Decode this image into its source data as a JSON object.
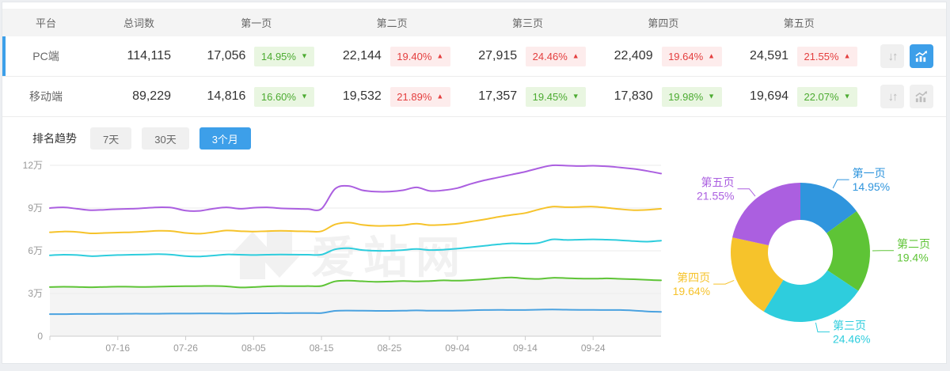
{
  "colors": {
    "accent_blue": "#3d9fe9",
    "up_red": "#e43e3e",
    "down_green": "#4cab31",
    "header_bg": "#f4f4f4"
  },
  "icons": {
    "sort_glyph": "↓↑"
  },
  "table": {
    "headers": [
      "平台",
      "总词数",
      "第一页",
      "第二页",
      "第三页",
      "第四页",
      "第五页"
    ],
    "rows": [
      {
        "platform": "PC端",
        "total": "114,115",
        "active": true,
        "pages": [
          {
            "value": "17,056",
            "pct": "14.95%",
            "dir": "down"
          },
          {
            "value": "22,144",
            "pct": "19.40%",
            "dir": "up"
          },
          {
            "value": "27,915",
            "pct": "24.46%",
            "dir": "up"
          },
          {
            "value": "22,409",
            "pct": "19.64%",
            "dir": "up"
          },
          {
            "value": "24,591",
            "pct": "21.55%",
            "dir": "up"
          }
        ]
      },
      {
        "platform": "移动端",
        "total": "89,229",
        "active": false,
        "pages": [
          {
            "value": "14,816",
            "pct": "16.60%",
            "dir": "down"
          },
          {
            "value": "19,532",
            "pct": "21.89%",
            "dir": "up"
          },
          {
            "value": "17,357",
            "pct": "19.45%",
            "dir": "down"
          },
          {
            "value": "17,830",
            "pct": "19.98%",
            "dir": "down"
          },
          {
            "value": "19,694",
            "pct": "22.07%",
            "dir": "down"
          }
        ]
      }
    ]
  },
  "trend": {
    "label": "排名趋势",
    "ranges": [
      {
        "label": "7天",
        "active": false
      },
      {
        "label": "30天",
        "active": false
      },
      {
        "label": "3个月",
        "active": true
      }
    ]
  },
  "chart_data": {
    "line": {
      "type": "line",
      "watermark": "爱站网",
      "ymax": 12,
      "yticks": [
        {
          "v": 0,
          "label": "0"
        },
        {
          "v": 3,
          "label": "3万"
        },
        {
          "v": 6,
          "label": "6万"
        },
        {
          "v": 9,
          "label": "9万"
        },
        {
          "v": 12,
          "label": "12万"
        }
      ],
      "xticks": [
        {
          "pos": 0.1111,
          "label": "07-16"
        },
        {
          "pos": 0.2222,
          "label": "07-26"
        },
        {
          "pos": 0.3333,
          "label": "08-05"
        },
        {
          "pos": 0.4444,
          "label": "08-15"
        },
        {
          "pos": 0.5556,
          "label": "08-25"
        },
        {
          "pos": 0.6667,
          "label": "09-04"
        },
        {
          "pos": 0.7778,
          "label": "09-14"
        },
        {
          "pos": 0.8889,
          "label": "09-24"
        }
      ],
      "unit": "万",
      "series": [
        {
          "name": "series-purple",
          "color": "#ab5fe0",
          "values": [
            9.0,
            9.05,
            8.95,
            8.85,
            8.88,
            8.92,
            8.95,
            9.0,
            9.05,
            9.02,
            8.82,
            8.8,
            8.95,
            9.05,
            8.95,
            9.02,
            9.05,
            8.98,
            8.95,
            8.93,
            8.95,
            10.35,
            10.55,
            10.25,
            10.15,
            10.15,
            10.25,
            10.45,
            10.2,
            10.25,
            10.4,
            10.7,
            10.95,
            11.15,
            11.35,
            11.55,
            11.8,
            12.0,
            11.98,
            11.95,
            11.97,
            11.93,
            11.85,
            11.75,
            11.6,
            11.42
          ]
        },
        {
          "name": "series-yellow",
          "color": "#f6c32b",
          "values": [
            7.3,
            7.35,
            7.32,
            7.22,
            7.25,
            7.28,
            7.3,
            7.35,
            7.4,
            7.38,
            7.25,
            7.2,
            7.3,
            7.42,
            7.38,
            7.35,
            7.38,
            7.4,
            7.38,
            7.36,
            7.37,
            7.85,
            7.98,
            7.82,
            7.75,
            7.76,
            7.8,
            7.9,
            7.8,
            7.83,
            7.9,
            8.05,
            8.2,
            8.38,
            8.52,
            8.65,
            8.9,
            9.1,
            9.06,
            9.08,
            9.1,
            9.02,
            8.92,
            8.85,
            8.88,
            8.95
          ]
        },
        {
          "name": "series-cyan",
          "color": "#2ecddd",
          "values": [
            5.68,
            5.72,
            5.7,
            5.62,
            5.66,
            5.7,
            5.72,
            5.74,
            5.76,
            5.72,
            5.62,
            5.6,
            5.66,
            5.74,
            5.72,
            5.7,
            5.72,
            5.74,
            5.73,
            5.72,
            5.73,
            6.1,
            6.18,
            6.05,
            6.0,
            6.0,
            6.05,
            6.12,
            6.05,
            6.08,
            6.15,
            6.25,
            6.35,
            6.45,
            6.52,
            6.5,
            6.55,
            6.8,
            6.76,
            6.78,
            6.8,
            6.78,
            6.74,
            6.68,
            6.64,
            6.71
          ]
        },
        {
          "name": "series-green",
          "color": "#5ec436",
          "fill": "#f4f4f4",
          "values": [
            3.45,
            3.47,
            3.46,
            3.44,
            3.46,
            3.48,
            3.47,
            3.46,
            3.48,
            3.5,
            3.51,
            3.52,
            3.53,
            3.5,
            3.42,
            3.45,
            3.5,
            3.52,
            3.51,
            3.52,
            3.53,
            3.85,
            3.9,
            3.86,
            3.82,
            3.84,
            3.88,
            3.85,
            3.88,
            3.92,
            3.9,
            3.94,
            4.0,
            4.08,
            4.12,
            4.05,
            4.02,
            4.1,
            4.08,
            4.05,
            4.04,
            4.06,
            4.03,
            4.0,
            3.96,
            3.92
          ]
        },
        {
          "name": "series-blue",
          "color": "#4aa2e0",
          "values": [
            1.55,
            1.55,
            1.56,
            1.56,
            1.57,
            1.57,
            1.58,
            1.58,
            1.58,
            1.59,
            1.59,
            1.6,
            1.6,
            1.59,
            1.6,
            1.61,
            1.61,
            1.62,
            1.62,
            1.63,
            1.63,
            1.78,
            1.8,
            1.79,
            1.78,
            1.78,
            1.79,
            1.81,
            1.79,
            1.79,
            1.8,
            1.82,
            1.84,
            1.85,
            1.84,
            1.84,
            1.86,
            1.87,
            1.86,
            1.85,
            1.85,
            1.84,
            1.84,
            1.8,
            1.74,
            1.71
          ]
        }
      ]
    },
    "donut": {
      "type": "pie",
      "slices": [
        {
          "label": "第一页",
          "pct": 14.95,
          "display": "14.95%",
          "color": "#2f95dd"
        },
        {
          "label": "第二页",
          "pct": 19.4,
          "display": "19.4%",
          "color": "#5ec436"
        },
        {
          "label": "第三页",
          "pct": 24.46,
          "display": "24.46%",
          "color": "#2ecddd"
        },
        {
          "label": "第四页",
          "pct": 19.64,
          "display": "19.64%",
          "color": "#f6c32b"
        },
        {
          "label": "第五页",
          "pct": 21.55,
          "display": "21.55%",
          "color": "#ab5fe0"
        }
      ]
    }
  }
}
